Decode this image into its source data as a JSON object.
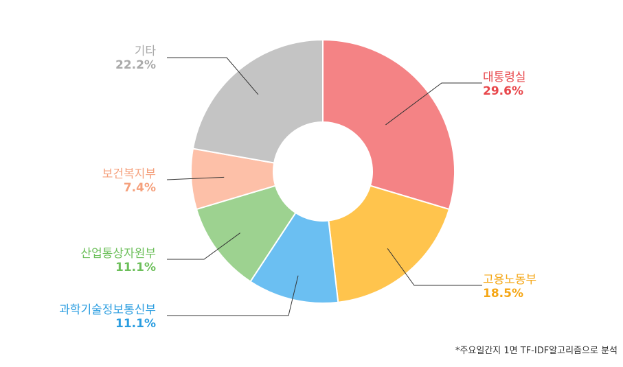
{
  "chart_data": {
    "type": "pie",
    "donut": true,
    "start": "12 o'clock, clockwise",
    "slices": [
      {
        "label": "대통령실",
        "value": 29.6,
        "value_label": "29.6%",
        "color": "#F48385",
        "text_color": "#E8474B",
        "side": "right"
      },
      {
        "label": "고용노동부",
        "value": 18.5,
        "value_label": "18.5%",
        "color": "#FFC44D",
        "text_color": "#F5A614",
        "side": "right"
      },
      {
        "label": "과학기술정보통신부",
        "value": 11.1,
        "value_label": "11.1%",
        "color": "#6BBFF2",
        "text_color": "#2A9DE0",
        "side": "left"
      },
      {
        "label": "산업통상자원부",
        "value": 11.1,
        "value_label": "11.1%",
        "color": "#9DD290",
        "text_color": "#6CBF5A",
        "side": "left"
      },
      {
        "label": "보건복지부",
        "value": 7.4,
        "value_label": "7.4%",
        "color": "#FDC0A8",
        "text_color": "#F5A07C",
        "side": "left"
      },
      {
        "label": "기타",
        "value": 22.2,
        "value_label": "22.2%",
        "color": "#C4C4C4",
        "text_color": "#AAAAAA",
        "side": "left"
      }
    ],
    "leader_line_color": "#333333"
  },
  "footnote": "*주요일간지 1면 TF-IDF알고리즘으로 분석"
}
